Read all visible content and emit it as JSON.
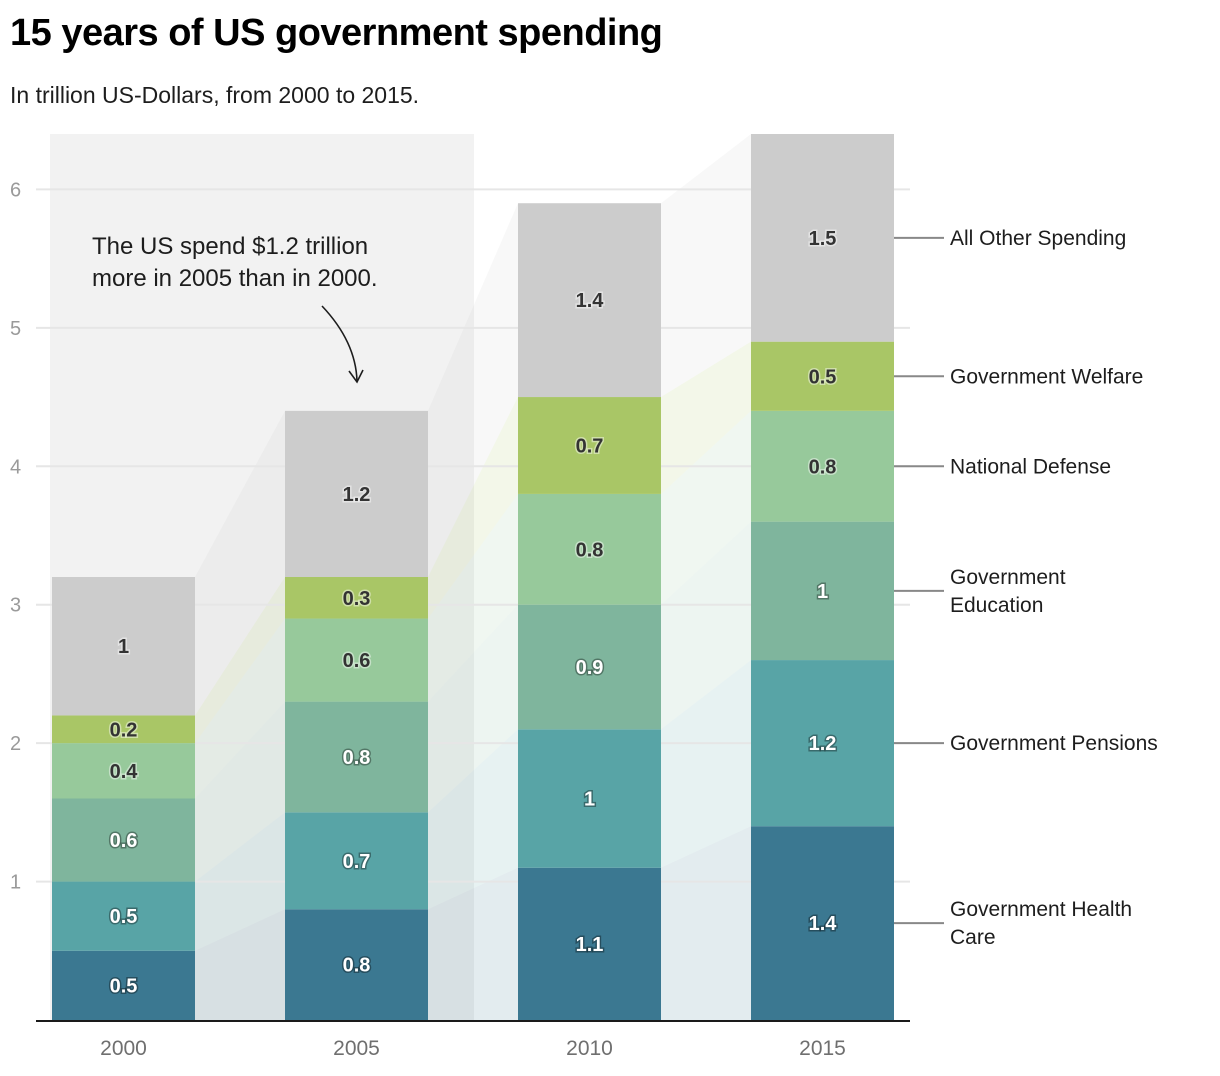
{
  "header": {
    "title": "15 years of US government spending",
    "subtitle": "In trillion US-Dollars, from 2000 to 2015."
  },
  "chart_data": {
    "type": "bar",
    "stacked": true,
    "title": "15 years of US government spending",
    "subtitle": "In trillion US-Dollars, from 2000 to 2015.",
    "xlabel": "",
    "ylabel": "",
    "categories": [
      "2000",
      "2005",
      "2010",
      "2015"
    ],
    "ylim": [
      0,
      6.4
    ],
    "yticks": [
      1,
      2,
      3,
      4,
      5,
      6
    ],
    "grid": true,
    "legend_placement": "right (direct labels at last bar)",
    "series": [
      {
        "name": "Government Health Care",
        "legend_lines": [
          "Government Health",
          "Care"
        ],
        "color": "#3b7891",
        "label_style": "light",
        "values": [
          0.5,
          0.8,
          1.1,
          1.4
        ]
      },
      {
        "name": "Government Pensions",
        "legend_lines": [
          "Government Pensions"
        ],
        "color": "#58a4a6",
        "label_style": "light",
        "values": [
          0.5,
          0.7,
          1.0,
          1.2
        ]
      },
      {
        "name": "Government Education",
        "legend_lines": [
          "Government",
          "Education"
        ],
        "color": "#7fb59d",
        "label_style": "light",
        "values": [
          0.6,
          0.8,
          0.9,
          1.0
        ]
      },
      {
        "name": "National Defense",
        "legend_lines": [
          "National Defense"
        ],
        "color": "#97c99b",
        "label_style": "dark",
        "values": [
          0.4,
          0.6,
          0.8,
          0.8
        ]
      },
      {
        "name": "Government Welfare",
        "legend_lines": [
          "Government Welfare"
        ],
        "color": "#a9c666",
        "label_style": "dark",
        "values": [
          0.2,
          0.3,
          0.7,
          0.5
        ]
      },
      {
        "name": "All Other Spending",
        "legend_lines": [
          "All Other Spending"
        ],
        "color": "#cccccc",
        "label_style": "dark",
        "values": [
          1.0,
          1.2,
          1.4,
          1.5
        ]
      }
    ],
    "data_labels": [
      [
        "0.5",
        "0.8",
        "1.1",
        "1.4"
      ],
      [
        "0.5",
        "0.7",
        "1",
        "1.2"
      ],
      [
        "0.6",
        "0.8",
        "0.9",
        "1"
      ],
      [
        "0.4",
        "0.6",
        "0.8",
        "0.8"
      ],
      [
        "0.2",
        "0.3",
        "0.7",
        "0.5"
      ],
      [
        "1",
        "1.2",
        "1.4",
        "1.5"
      ]
    ],
    "highlight_range": [
      "2000",
      "2005"
    ],
    "annotation": {
      "lines": [
        "The US spend $1.2 trillion",
        "more in 2005 than in 2000."
      ],
      "points_to": "2005"
    }
  },
  "colors": {
    "highlight_band": "#f2f2f2",
    "gridline": "#e6e6e6",
    "axis": "#1a1a1a"
  }
}
